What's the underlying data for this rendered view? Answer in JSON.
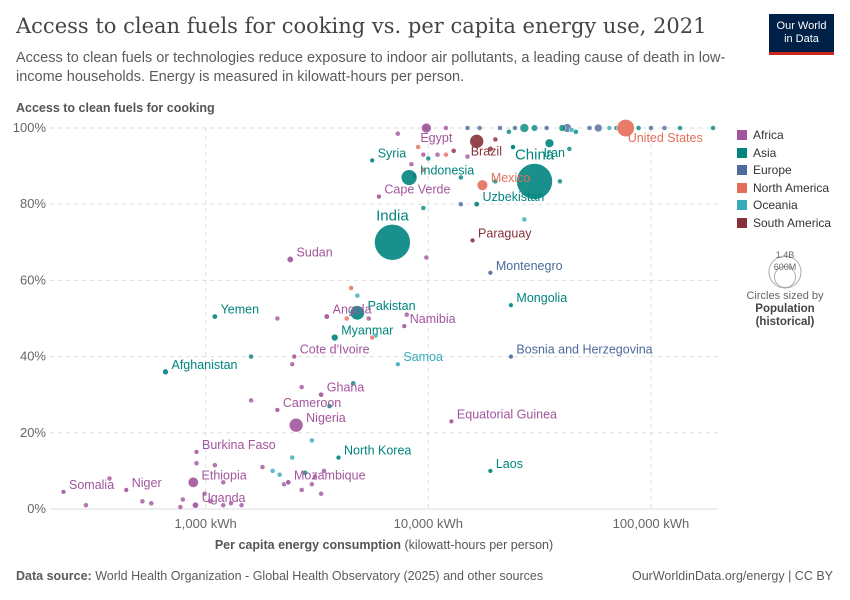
{
  "title": "Access to clean fuels for cooking vs. per capita energy use, 2021",
  "subtitle": "Access to clean fuels or technologies reduce exposure to indoor air pollutants, a leading cause of death in low-income households. Energy is measured in kilowatt-hours per person.",
  "logo": {
    "line1": "Our World",
    "line2": "in Data",
    "bg": "#002147",
    "accent": "#ce261e"
  },
  "footer": {
    "source_label": "Data source:",
    "source_text": "World Health Organization - Global Health Observatory (2025) and other sources",
    "url": "OurWorldinData.org/energy | CC BY"
  },
  "size_legend": {
    "large": "1.4B",
    "small": "600M",
    "note": "Circles sized by",
    "bold1": "Population",
    "bold2": "(historical)"
  },
  "chart_data": {
    "type": "scatter",
    "xlabel": "Per capita energy consumption",
    "xlabel_suffix": "(kilowatt-hours per person)",
    "ylabel": "Access to clean fuels for cooking",
    "xscale": "log",
    "xlim": [
      200,
      200000
    ],
    "ylim": [
      0,
      100
    ],
    "x_ticks": [
      {
        "value": 1000,
        "label": "1,000 kWh"
      },
      {
        "value": 10000,
        "label": "10,000 kWh"
      },
      {
        "value": 100000,
        "label": "100,000 kWh"
      }
    ],
    "y_ticks": [
      {
        "value": 0,
        "label": "0%"
      },
      {
        "value": 20,
        "label": "20%"
      },
      {
        "value": 40,
        "label": "40%"
      },
      {
        "value": 60,
        "label": "60%"
      },
      {
        "value": 80,
        "label": "80%"
      },
      {
        "value": 100,
        "label": "100%"
      }
    ],
    "legend_position": "right",
    "regions": [
      {
        "name": "Africa",
        "color": "#a2559c"
      },
      {
        "name": "Asia",
        "color": "#00847e"
      },
      {
        "name": "Europe",
        "color": "#4c6a9c"
      },
      {
        "name": "North America",
        "color": "#e56e5a"
      },
      {
        "name": "Oceania",
        "color": "#38aaba"
      },
      {
        "name": "South America",
        "color": "#883039"
      }
    ],
    "labeled_points": [
      {
        "name": "Egypt",
        "region": "Africa",
        "x": 9800,
        "y": 100,
        "pop": 110,
        "label": "Egypt"
      },
      {
        "name": "Brazil",
        "region": "South America",
        "x": 16500,
        "y": 96.5,
        "pop": 214,
        "label": "Brazil"
      },
      {
        "name": "Iran",
        "region": "Asia",
        "x": 35000,
        "y": 96,
        "pop": 88,
        "label": "Iran"
      },
      {
        "name": "United States",
        "region": "North America",
        "x": 77000,
        "y": 100,
        "pop": 336,
        "label": "United States"
      },
      {
        "name": "Syria",
        "region": "Asia",
        "x": 5600,
        "y": 91.5,
        "pop": 21,
        "label": "Syria"
      },
      {
        "name": "China",
        "region": "Asia",
        "x": 30000,
        "y": 86,
        "pop": 1410,
        "label": "China"
      },
      {
        "name": "Indonesia",
        "region": "Asia",
        "x": 8200,
        "y": 87,
        "pop": 274,
        "label": "Indonesia"
      },
      {
        "name": "Mexico",
        "region": "North America",
        "x": 17500,
        "y": 85,
        "pop": 127,
        "label": "Mexico"
      },
      {
        "name": "Cape Verde",
        "region": "Africa",
        "x": 6000,
        "y": 82,
        "pop": 0.6,
        "label": "Cape Verde"
      },
      {
        "name": "Uzbekistan",
        "region": "Asia",
        "x": 16500,
        "y": 80,
        "pop": 34,
        "label": "Uzbekistan"
      },
      {
        "name": "India",
        "region": "Asia",
        "x": 6900,
        "y": 70,
        "pop": 1410,
        "label": "India"
      },
      {
        "name": "Paraguay",
        "region": "South America",
        "x": 15800,
        "y": 70.5,
        "pop": 6.7,
        "label": "Paraguay"
      },
      {
        "name": "Sudan",
        "region": "Africa",
        "x": 2400,
        "y": 65.5,
        "pop": 46,
        "label": "Sudan"
      },
      {
        "name": "Montenegro",
        "region": "Europe",
        "x": 19000,
        "y": 62,
        "pop": 0.6,
        "label": "Montenegro"
      },
      {
        "name": "Yemen",
        "region": "Asia",
        "x": 1100,
        "y": 50.5,
        "pop": 33,
        "label": "Yemen"
      },
      {
        "name": "Pakistan",
        "region": "Asia",
        "x": 4800,
        "y": 51.5,
        "pop": 230,
        "label": "Pakistan"
      },
      {
        "name": "Angola",
        "region": "Africa",
        "x": 3500,
        "y": 50.5,
        "pop": 35,
        "label": "Angola"
      },
      {
        "name": "Mongolia",
        "region": "Asia",
        "x": 23500,
        "y": 53.5,
        "pop": 3.3,
        "label": "Mongolia"
      },
      {
        "name": "Namibia",
        "region": "Africa",
        "x": 7800,
        "y": 48,
        "pop": 2.6,
        "label": "Namibia"
      },
      {
        "name": "Myanmar",
        "region": "Asia",
        "x": 3800,
        "y": 45,
        "pop": 54,
        "label": "Myanmar"
      },
      {
        "name": "Cote d'Ivoire",
        "region": "Africa",
        "x": 2500,
        "y": 40,
        "pop": 28,
        "label": "Cote d'Ivoire"
      },
      {
        "name": "Samoa",
        "region": "Oceania",
        "x": 7300,
        "y": 38,
        "pop": 0.2,
        "label": "Samoa"
      },
      {
        "name": "Bosnia and Herzegovina",
        "region": "Europe",
        "x": 23500,
        "y": 40,
        "pop": 3.3,
        "label": "Bosnia and Herzegovina"
      },
      {
        "name": "Afghanistan",
        "region": "Asia",
        "x": 660,
        "y": 36,
        "pop": 40,
        "label": "Afghanistan"
      },
      {
        "name": "Ghana",
        "region": "Africa",
        "x": 3300,
        "y": 30,
        "pop": 32,
        "label": "Ghana"
      },
      {
        "name": "Cameroon",
        "region": "Africa",
        "x": 2100,
        "y": 26,
        "pop": 27,
        "label": "Cameroon"
      },
      {
        "name": "Nigeria",
        "region": "Africa",
        "x": 2550,
        "y": 22,
        "pop": 213,
        "label": "Nigeria"
      },
      {
        "name": "Equatorial Guinea",
        "region": "Africa",
        "x": 12700,
        "y": 23,
        "pop": 1.6,
        "label": "Equatorial Guinea"
      },
      {
        "name": "Burkina Faso",
        "region": "Africa",
        "x": 910,
        "y": 15,
        "pop": 22,
        "label": "Burkina Faso"
      },
      {
        "name": "North Korea",
        "region": "Asia",
        "x": 3950,
        "y": 13.5,
        "pop": 26,
        "label": "North Korea"
      },
      {
        "name": "Ethiopia",
        "region": "Africa",
        "x": 880,
        "y": 7,
        "pop": 120,
        "label": "Ethiopia"
      },
      {
        "name": "Mozambique",
        "region": "Africa",
        "x": 2350,
        "y": 7,
        "pop": 32,
        "label": "Mozambique"
      },
      {
        "name": "Laos",
        "region": "Asia",
        "x": 19000,
        "y": 10,
        "pop": 7.4,
        "label": "Laos"
      },
      {
        "name": "Somalia",
        "region": "Africa",
        "x": 230,
        "y": 4.5,
        "pop": 17,
        "label": "Somalia"
      },
      {
        "name": "Niger",
        "region": "Africa",
        "x": 440,
        "y": 5,
        "pop": 25,
        "label": "Niger"
      },
      {
        "name": "Uganda",
        "region": "Africa",
        "x": 900,
        "y": 1,
        "pop": 46,
        "label": "Uganda"
      }
    ],
    "other_points": [
      {
        "region": "Europe",
        "x": 58000,
        "y": 100,
        "pop": 67
      },
      {
        "region": "Europe",
        "x": 42000,
        "y": 100,
        "pop": 83
      },
      {
        "region": "Asia",
        "x": 40000,
        "y": 100,
        "pop": 51
      },
      {
        "region": "Asia",
        "x": 30000,
        "y": 100,
        "pop": 45
      },
      {
        "region": "Asia",
        "x": 27000,
        "y": 100,
        "pop": 85
      },
      {
        "region": "Europe",
        "x": 21000,
        "y": 100,
        "pop": 10
      },
      {
        "region": "Europe",
        "x": 34000,
        "y": 100,
        "pop": 20
      },
      {
        "region": "Oceania",
        "x": 65000,
        "y": 100,
        "pop": 26
      },
      {
        "region": "Asia",
        "x": 88000,
        "y": 100,
        "pop": 5
      },
      {
        "region": "Europe",
        "x": 115000,
        "y": 100,
        "pop": 5
      },
      {
        "region": "Asia",
        "x": 135000,
        "y": 100,
        "pop": 3
      },
      {
        "region": "Asia",
        "x": 190000,
        "y": 100,
        "pop": 3
      },
      {
        "region": "Europe",
        "x": 100000,
        "y": 100,
        "pop": 3
      },
      {
        "region": "Europe",
        "x": 15000,
        "y": 100,
        "pop": 4
      },
      {
        "region": "Africa",
        "x": 12000,
        "y": 100,
        "pop": 4
      },
      {
        "region": "Asia",
        "x": 9800,
        "y": 100,
        "pop": 5
      },
      {
        "region": "Europe",
        "x": 17000,
        "y": 100,
        "pop": 3
      },
      {
        "region": "Asia",
        "x": 23000,
        "y": 99,
        "pop": 5
      },
      {
        "region": "Europe",
        "x": 24500,
        "y": 100,
        "pop": 5
      },
      {
        "region": "Asia",
        "x": 46000,
        "y": 99,
        "pop": 9
      },
      {
        "region": "Europe",
        "x": 53000,
        "y": 100,
        "pop": 7
      },
      {
        "region": "Oceania",
        "x": 44000,
        "y": 99.5,
        "pop": 5
      },
      {
        "region": "Asia",
        "x": 70000,
        "y": 100,
        "pop": 4
      },
      {
        "region": "Africa",
        "x": 7300,
        "y": 98.5,
        "pop": 3
      },
      {
        "region": "Asia",
        "x": 24000,
        "y": 95,
        "pop": 9
      },
      {
        "region": "Asia",
        "x": 43000,
        "y": 94.5,
        "pop": 4
      },
      {
        "region": "South America",
        "x": 19000,
        "y": 94.5,
        "pop": 33
      },
      {
        "region": "South America",
        "x": 20000,
        "y": 97,
        "pop": 18
      },
      {
        "region": "Asia",
        "x": 24000,
        "y": 95,
        "pop": 20
      },
      {
        "region": "South America",
        "x": 13000,
        "y": 94,
        "pop": 3
      },
      {
        "region": "North America",
        "x": 9000,
        "y": 95,
        "pop": 3
      },
      {
        "region": "Africa",
        "x": 9500,
        "y": 93,
        "pop": 4
      },
      {
        "region": "Africa",
        "x": 11000,
        "y": 93,
        "pop": 4
      },
      {
        "region": "North America",
        "x": 12000,
        "y": 93,
        "pop": 3
      },
      {
        "region": "Asia",
        "x": 10000,
        "y": 92,
        "pop": 10
      },
      {
        "region": "Africa",
        "x": 15000,
        "y": 92.5,
        "pop": 3
      },
      {
        "region": "Africa",
        "x": 8400,
        "y": 90.5,
        "pop": 3
      },
      {
        "region": "North America",
        "x": 9500,
        "y": 89,
        "pop": 3
      },
      {
        "region": "South America",
        "x": 8700,
        "y": 87.5,
        "pop": 3
      },
      {
        "region": "Asia",
        "x": 39000,
        "y": 86,
        "pop": 3
      },
      {
        "region": "Asia",
        "x": 14000,
        "y": 87,
        "pop": 3
      },
      {
        "region": "Asia",
        "x": 20000,
        "y": 86,
        "pop": 3
      },
      {
        "region": "Asia",
        "x": 9500,
        "y": 79,
        "pop": 3
      },
      {
        "region": "Oceania",
        "x": 27000,
        "y": 76,
        "pop": 2
      },
      {
        "region": "Europe",
        "x": 14000,
        "y": 80,
        "pop": 2
      },
      {
        "region": "Africa",
        "x": 9800,
        "y": 66,
        "pop": 2
      },
      {
        "region": "Oceania",
        "x": 4800,
        "y": 56,
        "pop": 9
      },
      {
        "region": "North America",
        "x": 4500,
        "y": 58,
        "pop": 2
      },
      {
        "region": "Africa",
        "x": 2100,
        "y": 50,
        "pop": 2
      },
      {
        "region": "North America",
        "x": 4300,
        "y": 50,
        "pop": 2
      },
      {
        "region": "Africa",
        "x": 5400,
        "y": 50,
        "pop": 2
      },
      {
        "region": "Africa",
        "x": 8000,
        "y": 51,
        "pop": 2
      },
      {
        "region": "Oceania",
        "x": 5800,
        "y": 45.5,
        "pop": 2
      },
      {
        "region": "North America",
        "x": 5600,
        "y": 45,
        "pop": 2
      },
      {
        "region": "Asia",
        "x": 1600,
        "y": 40,
        "pop": 3
      },
      {
        "region": "Africa",
        "x": 2450,
        "y": 38,
        "pop": 2
      },
      {
        "region": "Asia",
        "x": 4600,
        "y": 33,
        "pop": 2
      },
      {
        "region": "Africa",
        "x": 2700,
        "y": 32,
        "pop": 2
      },
      {
        "region": "Africa",
        "x": 1600,
        "y": 28.5,
        "pop": 3
      },
      {
        "region": "Asia",
        "x": 3600,
        "y": 27,
        "pop": 8
      },
      {
        "region": "Oceania",
        "x": 3000,
        "y": 18,
        "pop": 2
      },
      {
        "region": "Africa",
        "x": 1800,
        "y": 11,
        "pop": 2
      },
      {
        "region": "Africa",
        "x": 1100,
        "y": 11.5,
        "pop": 2
      },
      {
        "region": "Africa",
        "x": 910,
        "y": 12,
        "pop": 2
      },
      {
        "region": "Oceania",
        "x": 2150,
        "y": 9,
        "pop": 2
      },
      {
        "region": "Oceania",
        "x": 2450,
        "y": 13.5,
        "pop": 2
      },
      {
        "region": "Asia",
        "x": 2800,
        "y": 9.5,
        "pop": 2
      },
      {
        "region": "Africa",
        "x": 3400,
        "y": 10,
        "pop": 2
      },
      {
        "region": "Africa",
        "x": 1200,
        "y": 7,
        "pop": 2
      },
      {
        "region": "Oceania",
        "x": 2000,
        "y": 10,
        "pop": 2
      },
      {
        "region": "Africa",
        "x": 3100,
        "y": 8.5,
        "pop": 2
      },
      {
        "region": "Africa",
        "x": 3000,
        "y": 6.5,
        "pop": 2
      },
      {
        "region": "Africa",
        "x": 2700,
        "y": 5,
        "pop": 2
      },
      {
        "region": "Africa",
        "x": 2250,
        "y": 6.5,
        "pop": 4
      },
      {
        "region": "Africa",
        "x": 3300,
        "y": 4,
        "pop": 2
      },
      {
        "region": "Africa",
        "x": 520,
        "y": 2,
        "pop": 2
      },
      {
        "region": "Africa",
        "x": 570,
        "y": 1.5,
        "pop": 2
      },
      {
        "region": "Africa",
        "x": 370,
        "y": 8,
        "pop": 2
      },
      {
        "region": "Africa",
        "x": 290,
        "y": 1,
        "pop": 2
      },
      {
        "region": "Africa",
        "x": 790,
        "y": 2.5,
        "pop": 2
      },
      {
        "region": "Africa",
        "x": 990,
        "y": 4,
        "pop": 2
      },
      {
        "region": "Africa",
        "x": 1050,
        "y": 2,
        "pop": 2
      },
      {
        "region": "Africa",
        "x": 1200,
        "y": 1,
        "pop": 2
      },
      {
        "region": "Africa",
        "x": 1300,
        "y": 1.5,
        "pop": 2
      },
      {
        "region": "Africa",
        "x": 770,
        "y": 0.5,
        "pop": 2
      },
      {
        "region": "Africa",
        "x": 1450,
        "y": 1,
        "pop": 2
      }
    ]
  }
}
